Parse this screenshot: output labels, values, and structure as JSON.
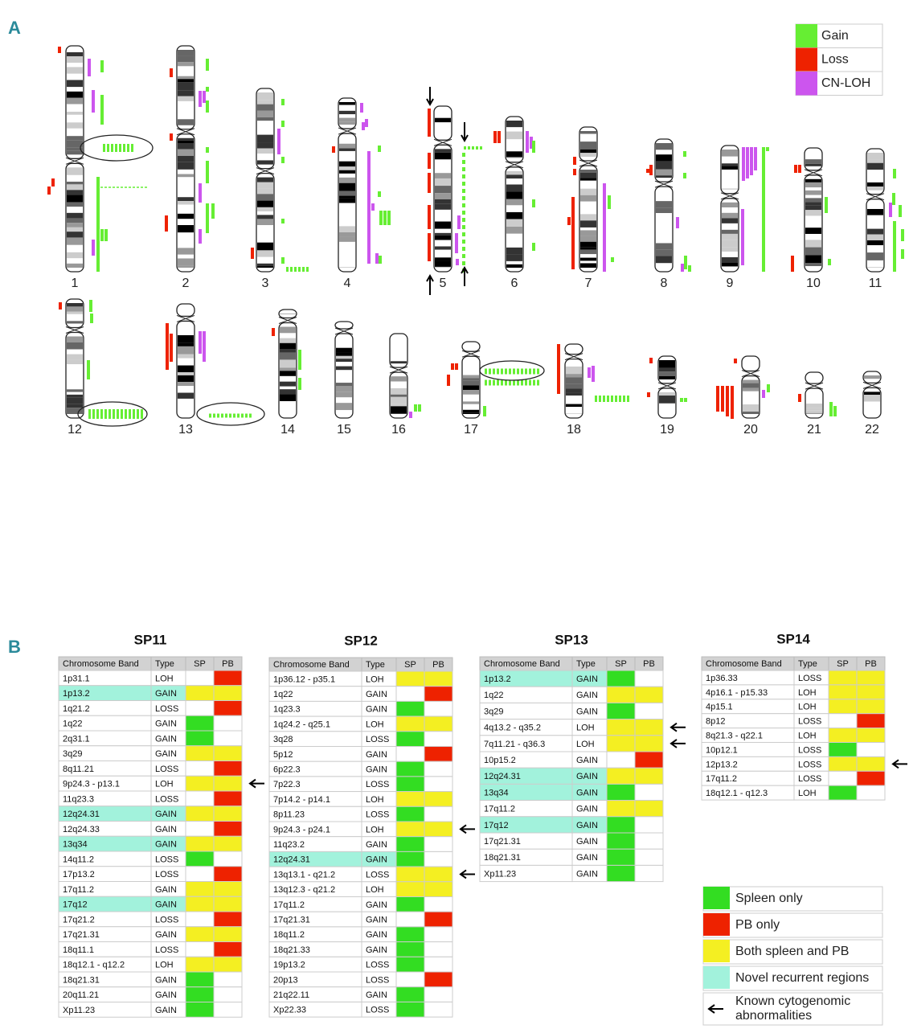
{
  "panel_a": {
    "label": "A",
    "legend": [
      {
        "name": "Gain",
        "color": "#66ee33"
      },
      {
        "name": "Loss",
        "color": "#ee2200"
      },
      {
        "name": "CN-LOH",
        "color": "#cc55ee"
      }
    ],
    "chromosomes": [
      "1",
      "2",
      "3",
      "4",
      "5",
      "6",
      "7",
      "8",
      "9",
      "10",
      "11",
      "12",
      "13",
      "14",
      "15",
      "16",
      "17",
      "18",
      "19",
      "20",
      "21",
      "22"
    ]
  },
  "panel_b": {
    "label": "B",
    "legend": [
      {
        "name": "Spleen only",
        "color": "#33dd22"
      },
      {
        "name": "PB only",
        "color": "#ee2200"
      },
      {
        "name": "Both spleen and PB",
        "color": "#f4ef22"
      },
      {
        "name": "Novel recurrent regions",
        "color": "#a2f2dc"
      },
      {
        "name": "Known cytogenomic abnormalities"
      }
    ],
    "tables": [
      {
        "title": "SP11",
        "columns": [
          "Chromosome Band",
          "Type",
          "SP",
          "PB"
        ],
        "rows": [
          {
            "band": "1p31.1",
            "type": "LOH",
            "found": 1
          },
          {
            "band": "1p13.2",
            "type": "GAIN",
            "found": 2,
            "novel": true
          },
          {
            "band": "1q21.2",
            "type": "LOSS",
            "found": 1
          },
          {
            "band": "1q22",
            "type": "GAIN",
            "found": 0
          },
          {
            "band": "2q31.1",
            "type": "GAIN",
            "found": 0
          },
          {
            "band": "3q29",
            "type": "GAIN",
            "found": 2
          },
          {
            "band": "8q11.21",
            "type": "LOSS",
            "found": 1
          },
          {
            "band": "9p24.3 - p13.1",
            "type": "LOH",
            "found": 2,
            "known": true
          },
          {
            "band": "11q23.3",
            "type": "LOSS",
            "found": 1
          },
          {
            "band": "12q24.31",
            "type": "GAIN",
            "found": 2,
            "novel": true
          },
          {
            "band": "12q24.33",
            "type": "GAIN",
            "found": 1
          },
          {
            "band": "13q34",
            "type": "GAIN",
            "found": 2,
            "novel": true
          },
          {
            "band": "14q11.2",
            "type": "LOSS",
            "found": 0
          },
          {
            "band": "17p13.2",
            "type": "LOSS",
            "found": 1
          },
          {
            "band": "17q11.2",
            "type": "GAIN",
            "found": 2
          },
          {
            "band": "17q12",
            "type": "GAIN",
            "found": 2,
            "novel": true
          },
          {
            "band": "17q21.2",
            "type": "LOSS",
            "found": 1
          },
          {
            "band": "17q21.31",
            "type": "GAIN",
            "found": 2
          },
          {
            "band": "18q11.1",
            "type": "LOSS",
            "found": 1
          },
          {
            "band": "18q12.1 - q12.2",
            "type": "LOH",
            "found": 2
          },
          {
            "band": "18q21.31",
            "type": "GAIN",
            "found": 0
          },
          {
            "band": "20q11.21",
            "type": "GAIN",
            "found": 0
          },
          {
            "band": "Xp11.23",
            "type": "GAIN",
            "found": 0
          }
        ]
      },
      {
        "title": "SP12",
        "columns": [
          "Chromosome Band",
          "Type",
          "SP",
          "PB"
        ],
        "rows": [
          {
            "band": "1p36.12 - p35.1",
            "type": "LOH",
            "found": 2
          },
          {
            "band": "1q22",
            "type": "GAIN",
            "found": 1
          },
          {
            "band": "1q23.3",
            "type": "GAIN",
            "found": 0
          },
          {
            "band": "1q24.2 - q25.1",
            "type": "LOH",
            "found": 2
          },
          {
            "band": "3q28",
            "type": "LOSS",
            "found": 0
          },
          {
            "band": "5p12",
            "type": "GAIN",
            "found": 1
          },
          {
            "band": "6p22.3",
            "type": "GAIN",
            "found": 0
          },
          {
            "band": "7p22.3",
            "type": "LOSS",
            "found": 0
          },
          {
            "band": "7p14.2 - p14.1",
            "type": "LOH",
            "found": 2
          },
          {
            "band": "8p11.23",
            "type": "LOSS",
            "found": 0
          },
          {
            "band": "9p24.3 - p24.1",
            "type": "LOH",
            "found": 2,
            "known": true
          },
          {
            "band": "11q23.2",
            "type": "GAIN",
            "found": 0
          },
          {
            "band": "12q24.31",
            "type": "GAIN",
            "found": 0,
            "novel": true
          },
          {
            "band": "13q13.1 - q21.2",
            "type": "LOSS",
            "found": 2,
            "known": true
          },
          {
            "band": "13q12.3 - q21.2",
            "type": "LOH",
            "found": 2
          },
          {
            "band": "17q11.2",
            "type": "GAIN",
            "found": 0
          },
          {
            "band": "17q21.31",
            "type": "GAIN",
            "found": 1
          },
          {
            "band": "18q11.2",
            "type": "GAIN",
            "found": 0
          },
          {
            "band": "18q21.33",
            "type": "GAIN",
            "found": 0
          },
          {
            "band": "19p13.2",
            "type": "LOSS",
            "found": 0
          },
          {
            "band": "20p13",
            "type": "LOSS",
            "found": 1
          },
          {
            "band": "21q22.11",
            "type": "GAIN",
            "found": 0
          },
          {
            "band": "Xp22.33",
            "type": "LOSS",
            "found": 0
          }
        ]
      },
      {
        "title": "SP13",
        "columns": [
          "Chromosome Band",
          "Type",
          "SP",
          "PB"
        ],
        "rows": [
          {
            "band": "1p13.2",
            "type": "GAIN",
            "found": 0,
            "novel": true
          },
          {
            "band": "1q22",
            "type": "GAIN",
            "found": 2
          },
          {
            "band": "3q29",
            "type": "GAIN",
            "found": 0
          },
          {
            "band": "4q13.2 - q35.2",
            "type": "LOH",
            "found": 2,
            "known": true
          },
          {
            "band": "7q11.21 - q36.3",
            "type": "LOH",
            "found": 2,
            "known": true
          },
          {
            "band": "10p15.2",
            "type": "GAIN",
            "found": 1
          },
          {
            "band": "12q24.31",
            "type": "GAIN",
            "found": 2,
            "novel": true
          },
          {
            "band": "13q34",
            "type": "GAIN",
            "found": 0,
            "novel": true
          },
          {
            "band": "17q11.2",
            "type": "GAIN",
            "found": 2
          },
          {
            "band": "17q12",
            "type": "GAIN",
            "found": 0,
            "novel": true
          },
          {
            "band": "17q21.31",
            "type": "GAIN",
            "found": 0
          },
          {
            "band": "18q21.31",
            "type": "GAIN",
            "found": 0
          },
          {
            "band": "Xp11.23",
            "type": "GAIN",
            "found": 0
          }
        ]
      },
      {
        "title": "SP14",
        "columns": [
          "Chromosome Band",
          "Type",
          "SP",
          "PB"
        ],
        "rows": [
          {
            "band": "1p36.33",
            "type": "LOSS",
            "found": 2
          },
          {
            "band": "4p16.1 - p15.33",
            "type": "LOH",
            "found": 2
          },
          {
            "band": "4p15.1",
            "type": "LOH",
            "found": 2
          },
          {
            "band": "8p12",
            "type": "LOSS",
            "found": 1
          },
          {
            "band": "8q21.3 - q22.1",
            "type": "LOH",
            "found": 2
          },
          {
            "band": "10p12.1",
            "type": "LOSS",
            "found": 0
          },
          {
            "band": "12p13.2",
            "type": "LOSS",
            "found": 2,
            "known": true
          },
          {
            "band": "17q11.2",
            "type": "LOSS",
            "found": 1
          },
          {
            "band": "18q12.1 - q12.3",
            "type": "LOH",
            "found": 0
          }
        ]
      }
    ]
  }
}
